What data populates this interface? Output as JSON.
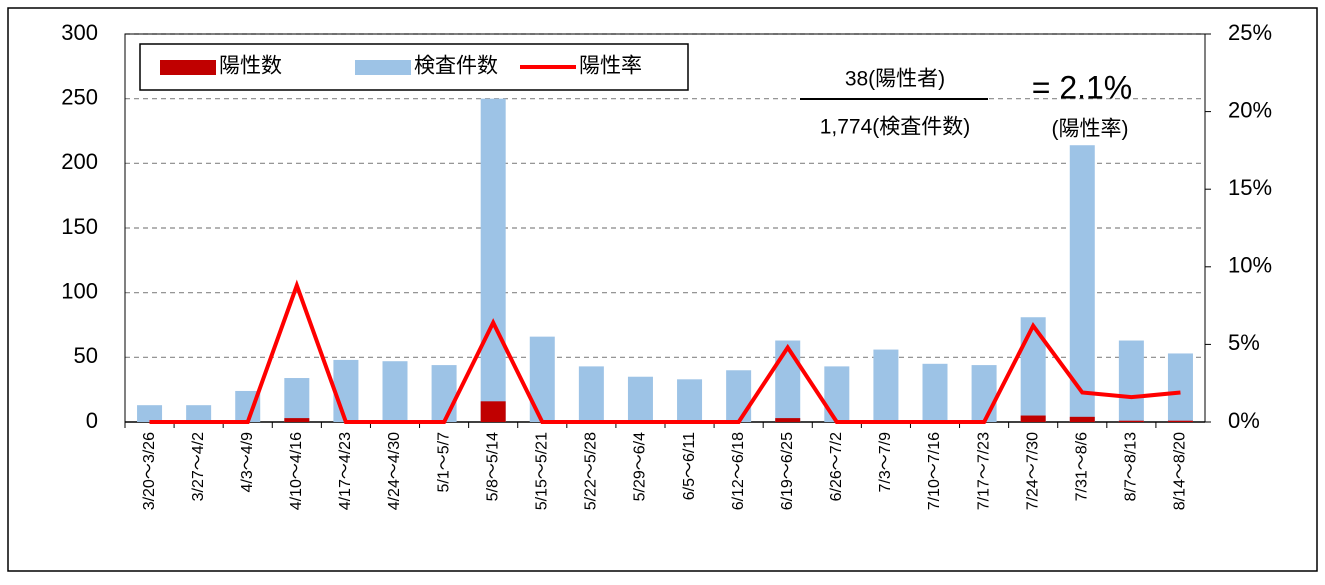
{
  "chart_data": {
    "type": "bar_line",
    "categories": [
      "3/20～3/26",
      "3/27～4/2",
      "4/3～4/9",
      "4/10～4/16",
      "4/17～4/23",
      "4/24～4/30",
      "5/1～5/7",
      "5/8～5/14",
      "5/15～5/21",
      "5/22～5/28",
      "5/29～6/4",
      "6/5～6/11",
      "6/12～6/18",
      "6/19～6/25",
      "6/26～7/2",
      "7/3～7/9",
      "7/10～7/16",
      "7/17～7/23",
      "7/24～7/30",
      "7/31～8/6",
      "8/7～8/13",
      "8/14～8/20"
    ],
    "series": [
      {
        "name": "陽性数",
        "color": "#c00000",
        "kind": "bar",
        "values": [
          0,
          0,
          0,
          3,
          0,
          0,
          0,
          16,
          0,
          0,
          0,
          0,
          0,
          3,
          0,
          0,
          0,
          0,
          5,
          4,
          1,
          1
        ]
      },
      {
        "name": "検査件数",
        "color": "#9dc3e6",
        "kind": "bar",
        "values": [
          13,
          13,
          24,
          34,
          48,
          47,
          44,
          250,
          66,
          43,
          35,
          33,
          40,
          63,
          43,
          56,
          45,
          44,
          81,
          214,
          63,
          53
        ]
      },
      {
        "name": "陽性率",
        "color": "#ff0000",
        "kind": "line",
        "axis": "y2",
        "values": [
          0,
          0,
          0,
          8.8,
          0,
          0,
          0,
          6.4,
          0,
          0,
          0,
          0,
          0,
          4.8,
          0,
          0,
          0,
          0,
          6.2,
          1.9,
          1.6,
          1.9
        ]
      }
    ],
    "ylim": [
      0,
      300
    ],
    "yticks": [
      0,
      50,
      100,
      150,
      200,
      250,
      300
    ],
    "y2lim": [
      0,
      25
    ],
    "y2ticks": [
      {
        "value": 0,
        "label": "0%"
      },
      {
        "value": 5,
        "label": "5%"
      },
      {
        "value": 10,
        "label": "10%"
      },
      {
        "value": 15,
        "label": "15%"
      },
      {
        "value": 20,
        "label": "20%"
      },
      {
        "value": 25,
        "label": "25%"
      }
    ],
    "grid": true,
    "legend": "upper left",
    "annotations": {
      "numerator": "38(陽性者)",
      "denominator": "1,774(検査件数)",
      "result": "= 2.1%",
      "result_label": "(陽性率)"
    }
  }
}
